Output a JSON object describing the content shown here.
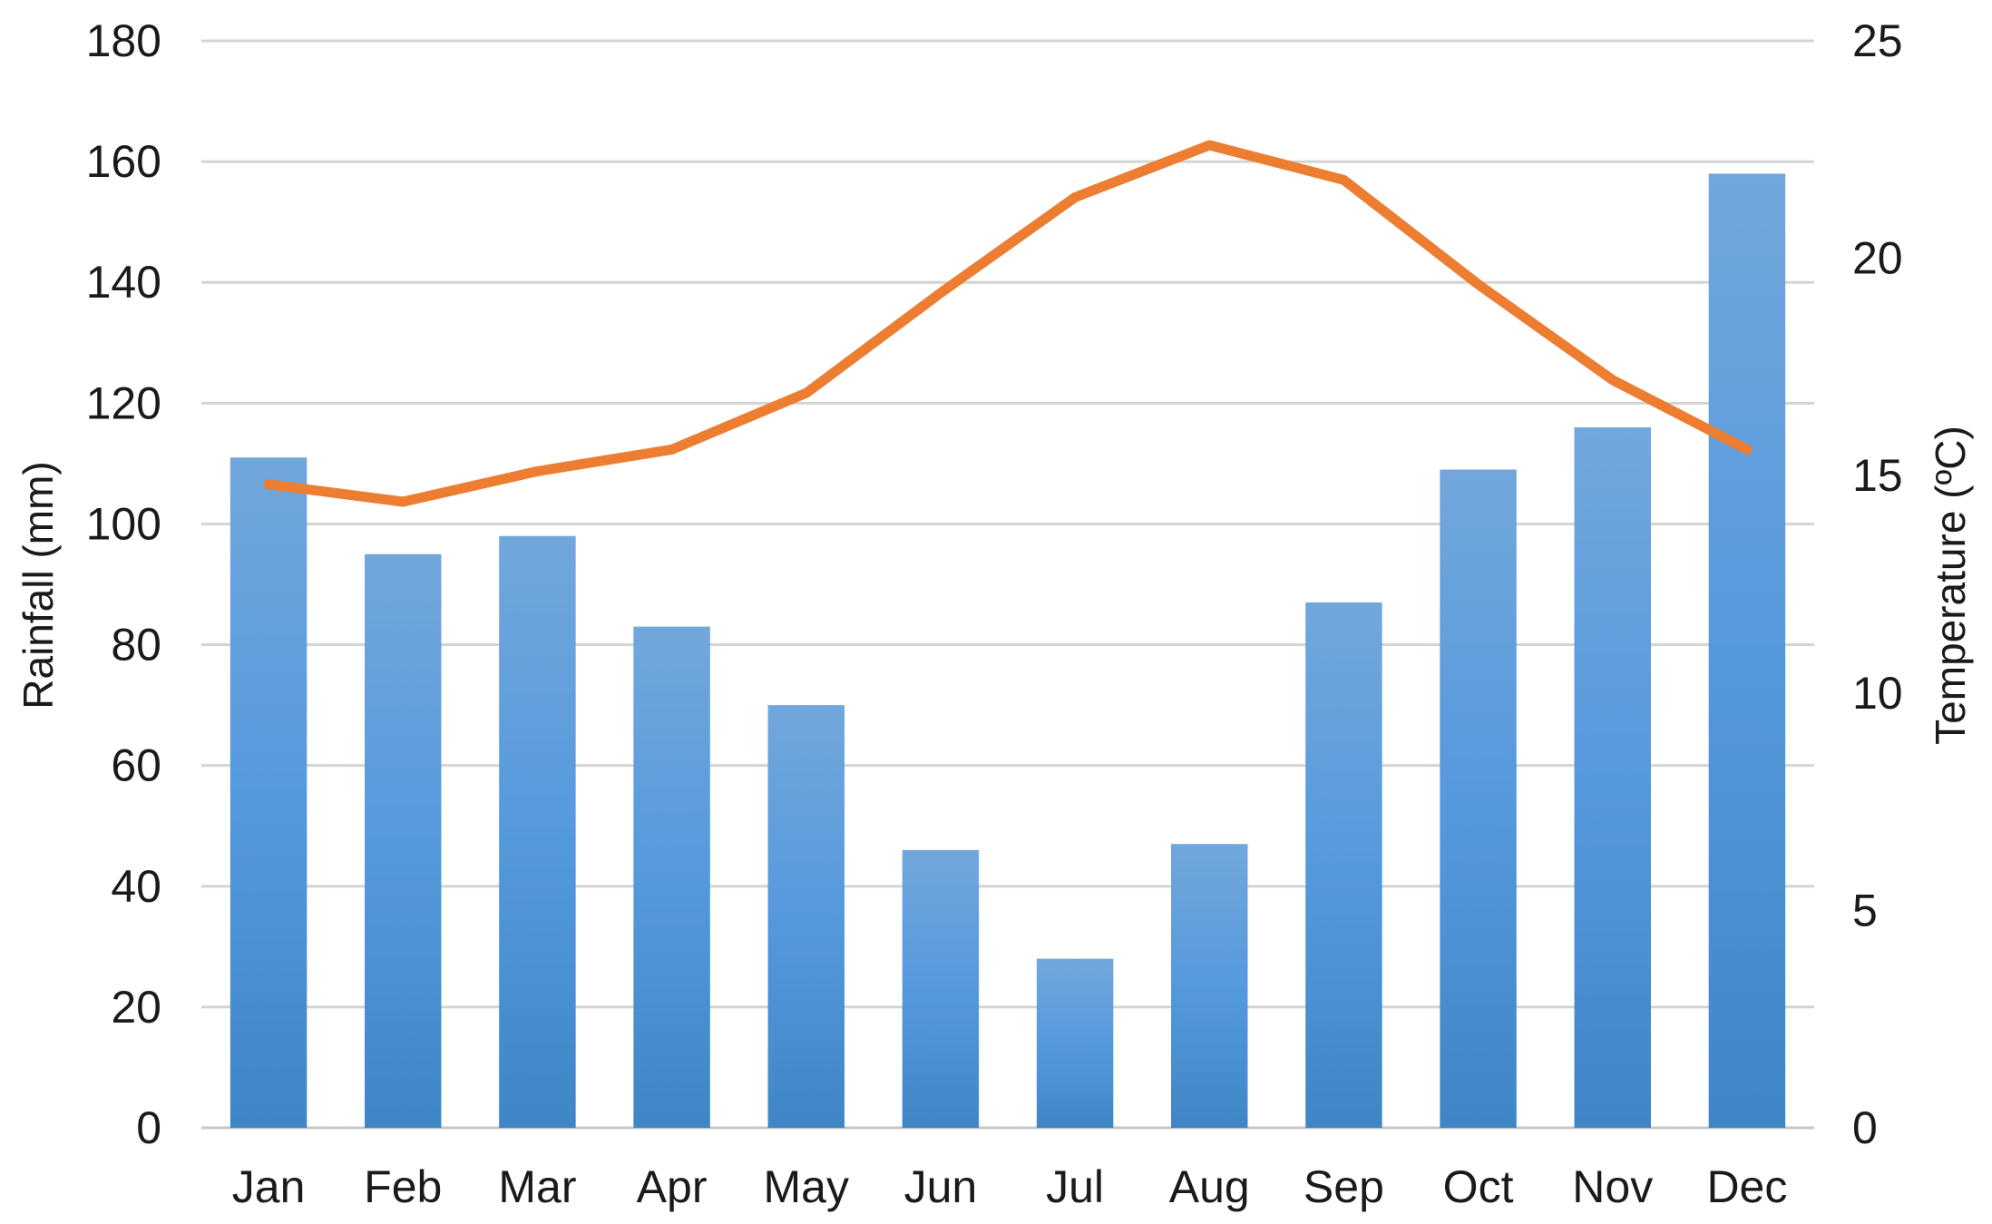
{
  "chart_data": {
    "type": "bar",
    "categories": [
      "Jan",
      "Feb",
      "Mar",
      "Apr",
      "May",
      "Jun",
      "Jul",
      "Aug",
      "Sep",
      "Oct",
      "Nov",
      "Dec"
    ],
    "series": [
      {
        "type": "bar",
        "axis": "left",
        "values": [
          111,
          95,
          98,
          83,
          70,
          46,
          28,
          47,
          87,
          109,
          116,
          158
        ],
        "color": "#5b9bd5"
      },
      {
        "type": "line",
        "axis": "right",
        "values": [
          14.8,
          14.4,
          15.1,
          15.6,
          16.9,
          19.2,
          21.4,
          22.6,
          21.8,
          19.4,
          17.2,
          15.6
        ],
        "color": "#ed7d31"
      }
    ],
    "ylabel": "Rainfall (mm)",
    "y2label": "Temperature (ºC)",
    "ylim": [
      0,
      180
    ],
    "y2lim": [
      0,
      25
    ],
    "yticks": [
      "0",
      "20",
      "40",
      "60",
      "80",
      "100",
      "120",
      "140",
      "160",
      "180"
    ],
    "y2ticks": [
      "0",
      "5",
      "10",
      "15",
      "20",
      "25"
    ],
    "grid": true,
    "legend": "none"
  }
}
